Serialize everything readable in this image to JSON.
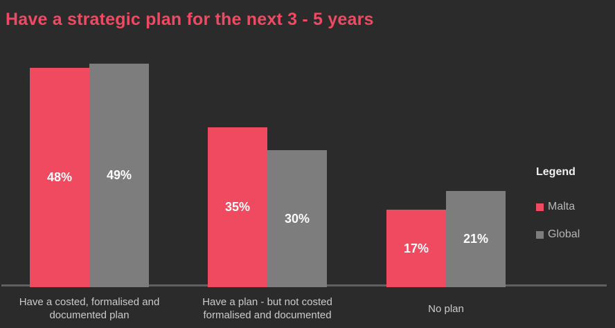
{
  "page": {
    "background_color": "#2b2b2b"
  },
  "title": {
    "text": "Have a strategic plan for the next 3 - 5 years",
    "color": "#ee4a63"
  },
  "legend": {
    "header": "Legend",
    "items": [
      {
        "label": "Malta",
        "color": "#ef4a5f"
      },
      {
        "label": "Global",
        "color": "#7d7d7d"
      }
    ]
  },
  "chart_data": {
    "type": "bar",
    "title": "Have a strategic plan for the next 3 - 5 years",
    "categories": [
      "Have a costed, formalised and documented plan",
      "Have a plan - but not costed formalised and documented",
      "No plan"
    ],
    "category_label_lines": [
      [
        "Have a costed, formalised and",
        "documented plan"
      ],
      [
        "Have a plan - but not costed",
        "formalised and documented"
      ],
      [
        "No plan"
      ]
    ],
    "series": [
      {
        "name": "Malta",
        "color": "#ef4a5f",
        "values": [
          48,
          35,
          17
        ],
        "labels": [
          "48%",
          "35%",
          "17%"
        ]
      },
      {
        "name": "Global",
        "color": "#7d7d7d",
        "values": [
          49,
          30,
          21
        ],
        "labels": [
          "49%",
          "30%",
          "21%"
        ]
      }
    ],
    "value_unit": "%",
    "ylim": [
      0,
      52
    ],
    "grid": false,
    "xlabel": "",
    "ylabel": "",
    "legend_position": "right",
    "axis_line_color": "#5d6164",
    "value_label_color": "#ffffff",
    "category_label_color": "#cbcbcb"
  }
}
